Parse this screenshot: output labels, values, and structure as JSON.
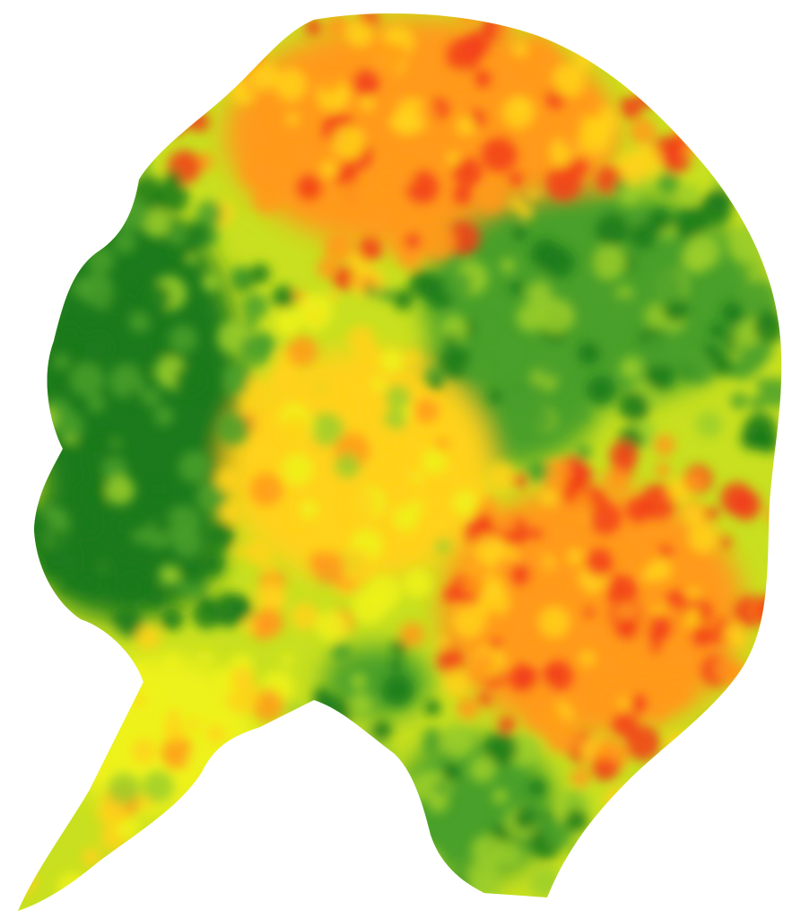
{
  "map": {
    "type": "raster-heatmap",
    "background_color": "#ffffff",
    "color_ramp": [
      "#1a7a1a",
      "#4aa02a",
      "#9ccf2a",
      "#eef21a",
      "#ffd21a",
      "#ff9a1a",
      "#f23c1a"
    ],
    "zones": [
      {
        "name": "north-high",
        "level": 0.82
      },
      {
        "name": "west-low",
        "level": 0.08
      },
      {
        "name": "east-low",
        "level": 0.14
      },
      {
        "name": "central-mid",
        "level": 0.6
      },
      {
        "name": "south-east-high",
        "level": 0.88
      },
      {
        "name": "tail-mixed",
        "level": 0.55
      },
      {
        "name": "lower-lobe-low",
        "level": 0.2
      }
    ]
  }
}
